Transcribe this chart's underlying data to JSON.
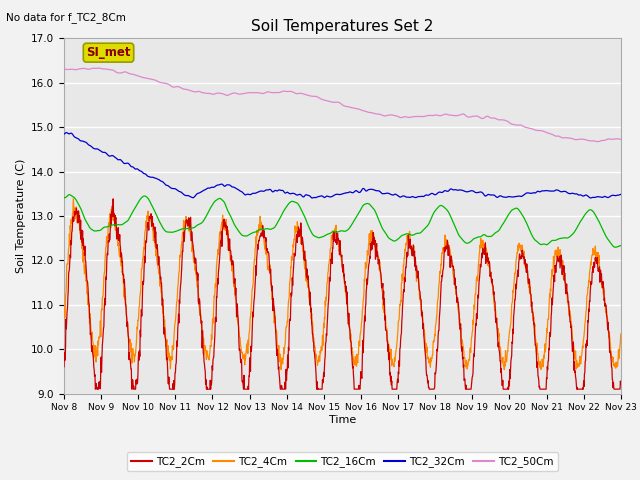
{
  "title": "Soil Temperatures Set 2",
  "top_left_note": "No data for f_TC2_8Cm",
  "ylabel": "Soil Temperature (C)",
  "xlabel": "Time",
  "ylim": [
    9.0,
    17.0
  ],
  "yticks": [
    9.0,
    10.0,
    11.0,
    12.0,
    13.0,
    14.0,
    15.0,
    16.0,
    17.0
  ],
  "xtick_labels": [
    "Nov 8",
    "Nov 9",
    "Nov 10",
    "Nov 11",
    "Nov 12",
    "Nov 13",
    "Nov 14",
    "Nov 15",
    "Nov 16",
    "Nov 17",
    "Nov 18",
    "Nov 19",
    "Nov 20",
    "Nov 21",
    "Nov 22",
    "Nov 23"
  ],
  "series_colors": {
    "TC2_2Cm": "#cc0000",
    "TC2_4Cm": "#ff8800",
    "TC2_16Cm": "#00bb00",
    "TC2_32Cm": "#0000cc",
    "TC2_50Cm": "#dd88cc"
  },
  "fig_bg": "#f2f2f2",
  "plot_bg": "#e8e8e8",
  "annotation_box_color": "#dddd00",
  "annotation_text": "SI_met",
  "annotation_text_color": "#880000",
  "grid_color": "#ffffff",
  "n_points": 1440,
  "seed": 7
}
